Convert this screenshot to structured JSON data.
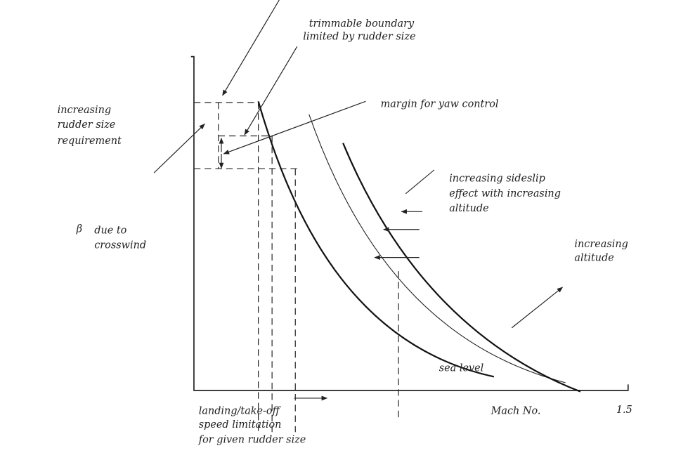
{
  "top_note": {
    "lines": [
      "trimmable boundary",
      "limited by rudder size"
    ]
  },
  "margin_note": {
    "lines": [
      "margin for yaw control"
    ]
  },
  "rudder_note": {
    "lines": [
      "increasing",
      "rudder size",
      "requirement"
    ]
  },
  "y_axis_label": {
    "symbol": "β",
    "lines": [
      "due to",
      "crosswind"
    ]
  },
  "sideslip_note": {
    "lines": [
      "increasing sideslip",
      "effect with increasing",
      "altitude"
    ]
  },
  "altitude_note": {
    "lines": [
      "increasing",
      "altitude"
    ]
  },
  "sea_level_note": {
    "lines": [
      "sea level"
    ]
  },
  "x_axis_label": "Mach No.",
  "x_axis_end": "1.5",
  "speed_note": {
    "lines": [
      "landing/take-off",
      "speed limitation",
      "for given rudder size"
    ]
  }
}
